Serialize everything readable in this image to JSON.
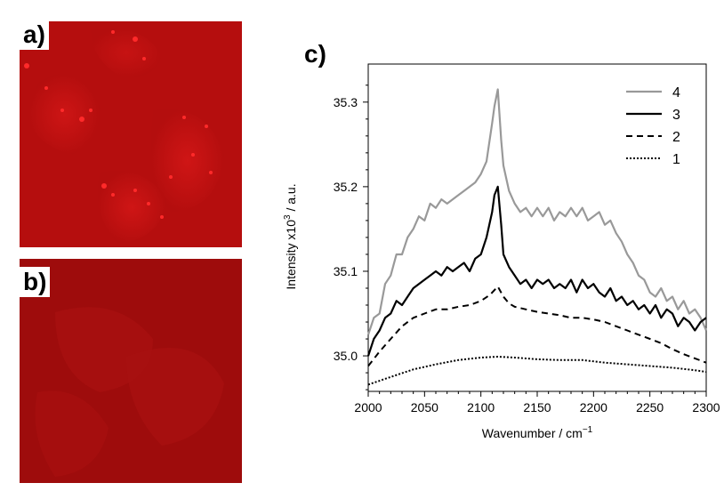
{
  "panels": {
    "a_label": "a)",
    "b_label": "b)",
    "c_label": "c)"
  },
  "colors": {
    "image_red": "#c41010",
    "image_red_dark": "#9a0a0a",
    "bright_spot": "#ff2a2a",
    "series_4": "#999999",
    "series_3": "#000000",
    "series_2": "#000000",
    "series_1": "#000000"
  },
  "chart_data": {
    "type": "line",
    "xlabel": "Wavenumber / cm",
    "xlabel_superscript": "−1",
    "ylabel": "Intensity  x10",
    "ylabel_superscript": "3",
    "ylabel_tail": " / a.u.",
    "xlim": [
      2000,
      2300
    ],
    "ylim": [
      34.958,
      35.345
    ],
    "xticks": [
      2000,
      2050,
      2100,
      2150,
      2200,
      2250,
      2300
    ],
    "xtick_labels": [
      "2000",
      "2050",
      "2100",
      "2150",
      "2200",
      "2250",
      "2300"
    ],
    "yticks": [
      35.0,
      35.1,
      35.2,
      35.3
    ],
    "ytick_labels": [
      "35.0",
      "35.1",
      "35.2",
      "35.3"
    ],
    "grid": false,
    "legend_position": "top-right",
    "series": [
      {
        "name": "4",
        "style": "solid",
        "x": [
          2000,
          2005,
          2010,
          2015,
          2020,
          2025,
          2030,
          2035,
          2040,
          2045,
          2050,
          2055,
          2060,
          2065,
          2070,
          2075,
          2080,
          2085,
          2090,
          2095,
          2100,
          2105,
          2110,
          2112,
          2115,
          2118,
          2120,
          2125,
          2130,
          2135,
          2140,
          2145,
          2150,
          2155,
          2160,
          2165,
          2170,
          2175,
          2180,
          2185,
          2190,
          2195,
          2200,
          2205,
          2210,
          2215,
          2220,
          2225,
          2230,
          2235,
          2240,
          2245,
          2250,
          2255,
          2260,
          2265,
          2270,
          2275,
          2280,
          2285,
          2290,
          2295,
          2300
        ],
        "values": [
          35.025,
          35.045,
          35.05,
          35.085,
          35.095,
          35.12,
          35.12,
          35.14,
          35.15,
          35.165,
          35.16,
          35.18,
          35.175,
          35.185,
          35.18,
          35.185,
          35.19,
          35.195,
          35.2,
          35.205,
          35.215,
          35.23,
          35.275,
          35.295,
          35.315,
          35.255,
          35.225,
          35.195,
          35.18,
          35.17,
          35.175,
          35.165,
          35.175,
          35.165,
          35.175,
          35.16,
          35.17,
          35.165,
          35.175,
          35.165,
          35.175,
          35.16,
          35.165,
          35.17,
          35.155,
          35.16,
          35.145,
          35.135,
          35.12,
          35.11,
          35.095,
          35.09,
          35.075,
          35.07,
          35.08,
          35.065,
          35.07,
          35.055,
          35.065,
          35.05,
          35.055,
          35.045,
          35.03
        ]
      },
      {
        "name": "3",
        "style": "solid",
        "x": [
          2000,
          2005,
          2010,
          2015,
          2020,
          2025,
          2030,
          2035,
          2040,
          2045,
          2050,
          2055,
          2060,
          2065,
          2070,
          2075,
          2080,
          2085,
          2090,
          2095,
          2100,
          2105,
          2110,
          2112,
          2115,
          2118,
          2120,
          2125,
          2130,
          2135,
          2140,
          2145,
          2150,
          2155,
          2160,
          2165,
          2170,
          2175,
          2180,
          2185,
          2190,
          2195,
          2200,
          2205,
          2210,
          2215,
          2220,
          2225,
          2230,
          2235,
          2240,
          2245,
          2250,
          2255,
          2260,
          2265,
          2270,
          2275,
          2280,
          2285,
          2290,
          2295,
          2300
        ],
        "values": [
          35.0,
          35.02,
          35.03,
          35.045,
          35.05,
          35.065,
          35.06,
          35.07,
          35.08,
          35.085,
          35.09,
          35.095,
          35.1,
          35.095,
          35.105,
          35.1,
          35.105,
          35.11,
          35.1,
          35.115,
          35.12,
          35.14,
          35.17,
          35.19,
          35.2,
          35.155,
          35.12,
          35.105,
          35.095,
          35.085,
          35.09,
          35.08,
          35.09,
          35.085,
          35.09,
          35.08,
          35.085,
          35.08,
          35.09,
          35.075,
          35.09,
          35.08,
          35.085,
          35.075,
          35.07,
          35.08,
          35.065,
          35.07,
          35.06,
          35.065,
          35.055,
          35.06,
          35.05,
          35.06,
          35.045,
          35.055,
          35.05,
          35.035,
          35.045,
          35.04,
          35.03,
          35.04,
          35.045
        ]
      },
      {
        "name": "2",
        "style": "dashed",
        "x": [
          2000,
          2010,
          2020,
          2030,
          2040,
          2050,
          2060,
          2070,
          2080,
          2090,
          2100,
          2108,
          2115,
          2120,
          2125,
          2130,
          2140,
          2150,
          2160,
          2170,
          2180,
          2190,
          2200,
          2210,
          2220,
          2230,
          2240,
          2250,
          2260,
          2270,
          2280,
          2290,
          2300
        ],
        "values": [
          34.988,
          35.005,
          35.02,
          35.035,
          35.045,
          35.05,
          35.055,
          35.055,
          35.058,
          35.06,
          35.065,
          35.072,
          35.082,
          35.07,
          35.062,
          35.058,
          35.055,
          35.052,
          35.05,
          35.048,
          35.045,
          35.045,
          35.043,
          35.04,
          35.035,
          35.03,
          35.025,
          35.02,
          35.015,
          35.008,
          35.002,
          34.997,
          34.992
        ]
      },
      {
        "name": "1",
        "style": "dotted",
        "x": [
          2000,
          2020,
          2040,
          2060,
          2080,
          2100,
          2115,
          2130,
          2150,
          2170,
          2190,
          2210,
          2230,
          2250,
          2270,
          2290,
          2300
        ],
        "values": [
          34.966,
          34.975,
          34.984,
          34.99,
          34.995,
          34.998,
          34.999,
          34.998,
          34.996,
          34.995,
          34.995,
          34.992,
          34.99,
          34.988,
          34.986,
          34.983,
          34.981
        ]
      }
    ]
  }
}
